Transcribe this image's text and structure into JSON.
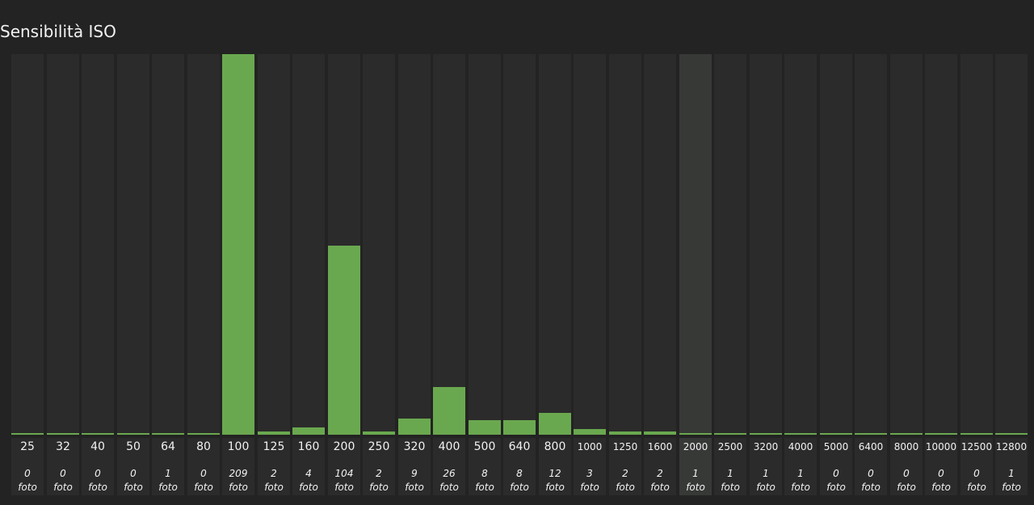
{
  "title": "Sensibilità ISO",
  "unit_label": "foto",
  "highlighted": "2000",
  "colors": {
    "background": "#232323",
    "column": "#2b2b2b",
    "column_highlight": "#373937",
    "bar": "#6aa84f",
    "text": "#f2f2f2"
  },
  "chart_data": {
    "type": "bar",
    "title": "Sensibilità ISO",
    "xlabel": "",
    "ylabel": "",
    "categories": [
      "25",
      "32",
      "40",
      "50",
      "64",
      "80",
      "100",
      "125",
      "160",
      "200",
      "250",
      "320",
      "400",
      "500",
      "640",
      "800",
      "1000",
      "1250",
      "1600",
      "2000",
      "2500",
      "3200",
      "4000",
      "5000",
      "6400",
      "8000",
      "10000",
      "12500",
      "12800"
    ],
    "values": [
      0,
      0,
      0,
      0,
      1,
      0,
      209,
      2,
      4,
      104,
      2,
      9,
      26,
      8,
      8,
      12,
      3,
      2,
      2,
      1,
      1,
      1,
      1,
      0,
      0,
      0,
      0,
      0,
      1
    ],
    "ylim": [
      0,
      209
    ],
    "grid": false,
    "legend": "none"
  }
}
